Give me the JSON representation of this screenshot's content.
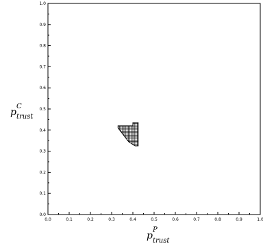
{
  "chart_data": {
    "type": "scatter",
    "title": "",
    "xlabel": {
      "base": "p",
      "superscript": "P",
      "subscript": "trust"
    },
    "ylabel": {
      "base": "p",
      "superscript": "C",
      "subscript": "trust"
    },
    "xlim": [
      0.0,
      1.0
    ],
    "ylim": [
      0.0,
      1.0
    ],
    "x_ticks": [
      "0.0",
      "0.1",
      "0.2",
      "0.3",
      "0.4",
      "0.5",
      "0.6",
      "0.7",
      "0.8",
      "0.9",
      "1.0"
    ],
    "y_ticks": [
      "0.0",
      "0.1",
      "0.2",
      "0.3",
      "0.4",
      "0.5",
      "0.6",
      "0.7",
      "0.8",
      "0.9",
      "1.0"
    ],
    "grid": false,
    "region": {
      "description_marks": "hatched feasible region",
      "polygon": [
        [
          0.33,
          0.42
        ],
        [
          0.4,
          0.42
        ],
        [
          0.4,
          0.435
        ],
        [
          0.425,
          0.435
        ],
        [
          0.425,
          0.325
        ],
        [
          0.41,
          0.325
        ],
        [
          0.38,
          0.345
        ],
        [
          0.33,
          0.41
        ]
      ],
      "grid_step": 0.007
    }
  }
}
